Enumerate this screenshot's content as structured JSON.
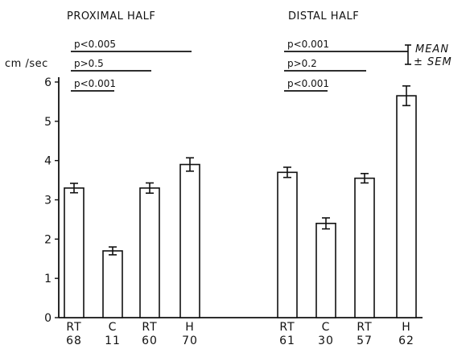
{
  "chart_data": {
    "type": "bar",
    "ylabel": "cm /sec",
    "ylim": [
      0,
      6
    ],
    "yticks": [
      "0",
      "1",
      "2",
      "3",
      "4",
      "5",
      "6"
    ],
    "error_bars": "± SEM",
    "legend": {
      "line1": "MEAN",
      "line2": "± SEM",
      "placement": "top-right"
    },
    "groups": [
      {
        "title": "PROXIMAL HALF",
        "bars": [
          {
            "label": "RT",
            "n": "68",
            "value": 3.3,
            "sem": 0.12
          },
          {
            "label": "C",
            "n": "11",
            "value": 1.7,
            "sem": 0.1
          },
          {
            "label": "RT",
            "n": "60",
            "value": 3.3,
            "sem": 0.13
          },
          {
            "label": "H",
            "n": "70",
            "value": 3.9,
            "sem": 0.17
          }
        ],
        "comparisons": [
          {
            "text": "p<0.005",
            "from": 0,
            "to": 3
          },
          {
            "text": "p>0.5",
            "from": 0,
            "to": 2
          },
          {
            "text": "p<0.001",
            "from": 0,
            "to": 1
          }
        ]
      },
      {
        "title": "DISTAL HALF",
        "bars": [
          {
            "label": "RT",
            "n": "61",
            "value": 3.7,
            "sem": 0.13
          },
          {
            "label": "C",
            "n": "30",
            "value": 2.4,
            "sem": 0.14
          },
          {
            "label": "RT",
            "n": "57",
            "value": 3.55,
            "sem": 0.12
          },
          {
            "label": "H",
            "n": "62",
            "value": 5.65,
            "sem": 0.25
          }
        ],
        "comparisons": [
          {
            "text": "p<0.001",
            "from": 0,
            "to": 3
          },
          {
            "text": "p>0.2",
            "from": 0,
            "to": 2
          },
          {
            "text": "p<0.001",
            "from": 0,
            "to": 1
          }
        ]
      }
    ]
  }
}
